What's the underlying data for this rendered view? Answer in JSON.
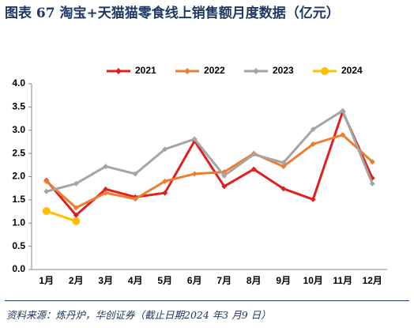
{
  "chart_data": {
    "type": "line",
    "title": "图表 67   淘宝+天猫猫零食线上销售额月度数据（亿元）",
    "source": "资料来源：炼丹炉，华创证券（截止日期2024 年3 月9 日）",
    "categories": [
      "1月",
      "2月",
      "3月",
      "4月",
      "5月",
      "6月",
      "7月",
      "8月",
      "9月",
      "10月",
      "11月",
      "12月"
    ],
    "series": [
      {
        "name": "2021",
        "color": "#e0201f",
        "marker": "diamond",
        "values": [
          1.92,
          1.17,
          1.73,
          1.56,
          1.65,
          2.77,
          1.79,
          2.16,
          1.74,
          1.51,
          3.4,
          1.97
        ]
      },
      {
        "name": "2022",
        "color": "#ed7d31",
        "marker": "diamond",
        "values": [
          1.9,
          1.33,
          1.65,
          1.52,
          1.9,
          2.06,
          2.1,
          2.5,
          2.22,
          2.7,
          2.9,
          2.32
        ]
      },
      {
        "name": "2023",
        "color": "#a5a5a5",
        "marker": "diamond",
        "values": [
          1.68,
          1.85,
          2.22,
          2.06,
          2.59,
          2.81,
          2.02,
          2.48,
          2.3,
          3.02,
          3.42,
          1.85
        ]
      },
      {
        "name": "2024",
        "color": "#ffc000",
        "marker": "circle",
        "values": [
          1.26,
          1.04,
          null,
          null,
          null,
          null,
          null,
          null,
          null,
          null,
          null,
          null
        ]
      }
    ],
    "ylim": [
      0,
      4
    ],
    "yticks": [
      {
        "value": 0,
        "label": "0.0"
      },
      {
        "value": 0.5,
        "label": "0.5"
      },
      {
        "value": 1,
        "label": "1.0"
      },
      {
        "value": 1.5,
        "label": "1.5"
      },
      {
        "value": 2,
        "label": "2.0"
      },
      {
        "value": 2.5,
        "label": "2.5"
      },
      {
        "value": 3,
        "label": "3.0"
      },
      {
        "value": 3.5,
        "label": "3.5"
      },
      {
        "value": 4,
        "label": "4.0"
      }
    ],
    "grid": false,
    "legend": "top"
  }
}
